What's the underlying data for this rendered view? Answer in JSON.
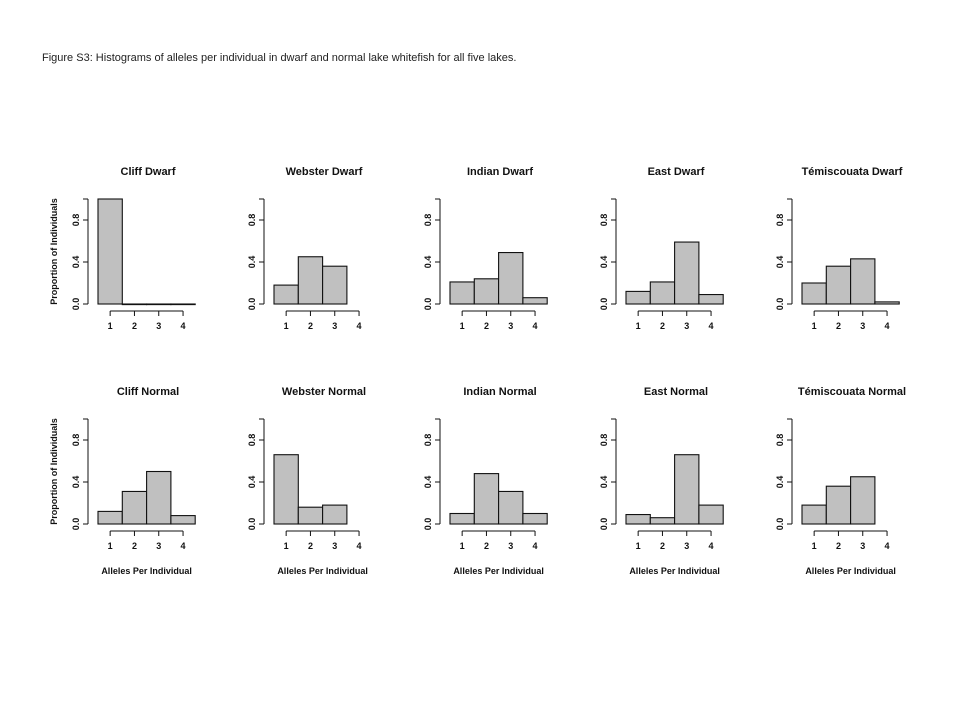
{
  "caption": "Figure S3: Histograms of alleles per individual in dwarf and normal lake whitefish for all five lakes.",
  "colors": {
    "bar_fill": "#c0c0c0",
    "bar_stroke": "#111111",
    "axis": "#111111"
  },
  "chart_data": [
    {
      "type": "bar",
      "title": "Cliff Dwarf",
      "ylabel": "Proportion of Individuals",
      "xlabel": "",
      "categories": [
        "1",
        "2",
        "3",
        "4"
      ],
      "values": [
        1.0,
        0.0,
        0.0,
        0.0
      ],
      "xticks": [
        "1",
        "2",
        "3",
        "4"
      ],
      "yticks": [
        "0.0",
        "0.4",
        "0.8"
      ],
      "ylim": [
        0,
        1
      ]
    },
    {
      "type": "bar",
      "title": "Webster Dwarf",
      "ylabel": "",
      "xlabel": "",
      "categories": [
        "1",
        "2",
        "3"
      ],
      "values": [
        0.18,
        0.45,
        0.36
      ],
      "xticks": [
        "1",
        "2",
        "3",
        "4"
      ],
      "yticks": [
        "0.0",
        "0.4",
        "0.8"
      ],
      "ylim": [
        0,
        1
      ]
    },
    {
      "type": "bar",
      "title": "Indian Dwarf",
      "ylabel": "",
      "xlabel": "",
      "categories": [
        "1",
        "2",
        "3",
        "4"
      ],
      "values": [
        0.21,
        0.24,
        0.49,
        0.06
      ],
      "xticks": [
        "1",
        "2",
        "3",
        "4"
      ],
      "yticks": [
        "0.0",
        "0.4",
        "0.8"
      ],
      "ylim": [
        0,
        1
      ]
    },
    {
      "type": "bar",
      "title": "East Dwarf",
      "ylabel": "",
      "xlabel": "",
      "categories": [
        "1",
        "2",
        "3",
        "4"
      ],
      "values": [
        0.12,
        0.21,
        0.59,
        0.09
      ],
      "xticks": [
        "1",
        "2",
        "3",
        "4"
      ],
      "yticks": [
        "0.0",
        "0.4",
        "0.8"
      ],
      "ylim": [
        0,
        1
      ]
    },
    {
      "type": "bar",
      "title": "Témiscouata Dwarf",
      "ylabel": "",
      "xlabel": "",
      "categories": [
        "1",
        "2",
        "3",
        "4"
      ],
      "values": [
        0.2,
        0.36,
        0.43,
        0.02
      ],
      "xticks": [
        "1",
        "2",
        "3",
        "4"
      ],
      "yticks": [
        "0.0",
        "0.4",
        "0.8"
      ],
      "ylim": [
        0,
        1
      ]
    },
    {
      "type": "bar",
      "title": "Cliff Normal",
      "ylabel": "Proportion of Individuals",
      "xlabel": "Alleles Per Individual",
      "categories": [
        "1",
        "2",
        "3",
        "4"
      ],
      "values": [
        0.12,
        0.31,
        0.5,
        0.08
      ],
      "xticks": [
        "1",
        "2",
        "3",
        "4"
      ],
      "yticks": [
        "0.0",
        "0.4",
        "0.8"
      ],
      "ylim": [
        0,
        1
      ]
    },
    {
      "type": "bar",
      "title": "Webster Normal",
      "ylabel": "",
      "xlabel": "Alleles Per Individual",
      "categories": [
        "1",
        "2",
        "3"
      ],
      "values": [
        0.66,
        0.16,
        0.18
      ],
      "xticks": [
        "1",
        "2",
        "3",
        "4"
      ],
      "yticks": [
        "0.0",
        "0.4",
        "0.8"
      ],
      "ylim": [
        0,
        1
      ]
    },
    {
      "type": "bar",
      "title": "Indian Normal",
      "ylabel": "",
      "xlabel": "Alleles Per Individual",
      "categories": [
        "1",
        "2",
        "3",
        "4"
      ],
      "values": [
        0.1,
        0.48,
        0.31,
        0.1
      ],
      "xticks": [
        "1",
        "2",
        "3",
        "4"
      ],
      "yticks": [
        "0.0",
        "0.4",
        "0.8"
      ],
      "ylim": [
        0,
        1
      ]
    },
    {
      "type": "bar",
      "title": "East Normal",
      "ylabel": "",
      "xlabel": "Alleles Per Individual",
      "categories": [
        "1",
        "2",
        "3",
        "4"
      ],
      "values": [
        0.09,
        0.06,
        0.66,
        0.18
      ],
      "xticks": [
        "1",
        "2",
        "3",
        "4"
      ],
      "yticks": [
        "0.0",
        "0.4",
        "0.8"
      ],
      "ylim": [
        0,
        1
      ]
    },
    {
      "type": "bar",
      "title": "Témiscouata Normal",
      "ylabel": "",
      "xlabel": "Alleles Per Individual",
      "categories": [
        "1",
        "2",
        "3"
      ],
      "values": [
        0.18,
        0.36,
        0.45
      ],
      "xticks": [
        "1",
        "2",
        "3",
        "4"
      ],
      "yticks": [
        "0.0",
        "0.4",
        "0.8"
      ],
      "ylim": [
        0,
        1
      ]
    }
  ]
}
